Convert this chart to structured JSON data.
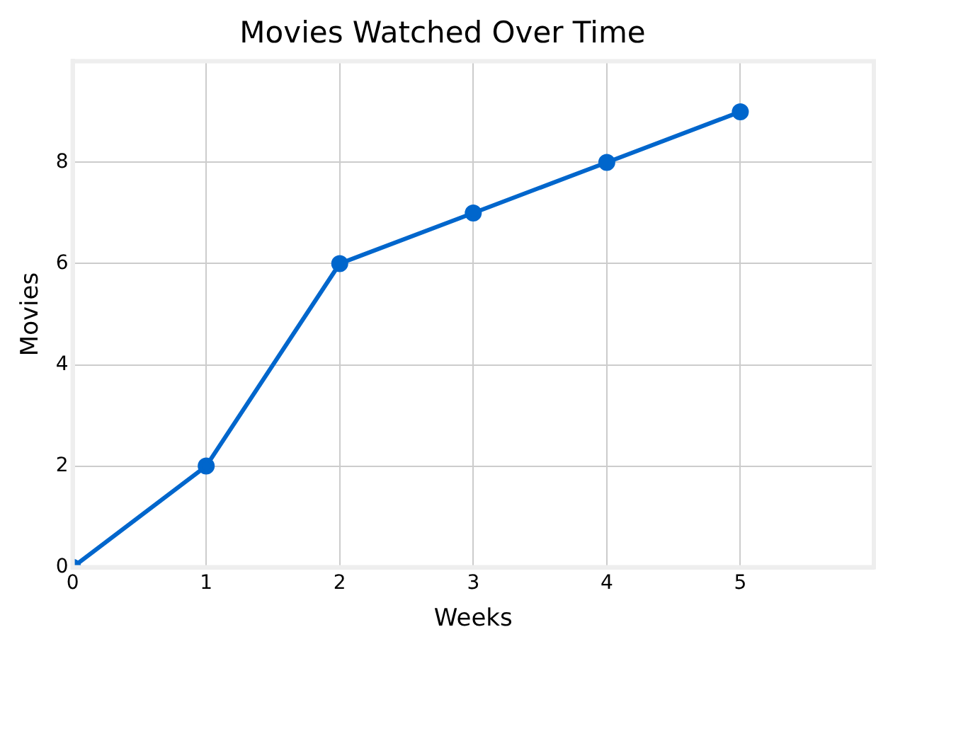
{
  "chart_data": {
    "type": "line",
    "title": "Movies Watched Over Time",
    "xlabel": "Weeks",
    "ylabel": "Movies",
    "x": [
      0,
      1,
      2,
      3,
      4,
      5
    ],
    "series": [
      {
        "color": "#0066cc",
        "values": [
          0,
          2,
          6,
          7,
          8,
          9
        ]
      }
    ],
    "xlim": [
      0,
      6
    ],
    "xticks": [
      0,
      1,
      2,
      3,
      4,
      5
    ],
    "ylim": [
      0,
      10
    ],
    "yticks": [
      0,
      2,
      4,
      6,
      8
    ],
    "grid": true,
    "marker": "circle",
    "line_style": "solid"
  }
}
